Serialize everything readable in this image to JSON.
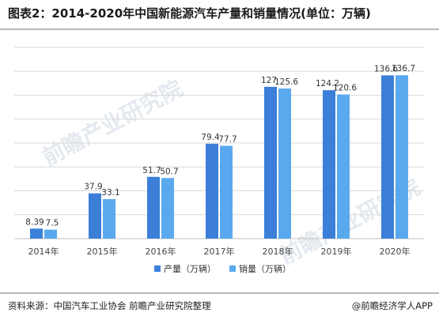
{
  "title": "图表2：2014-2020年中国新能源汽车产量和销量情况(单位：万辆)",
  "watermark": "前瞻产业研究院",
  "source": "资料来源：中国汽车工业协会 前瞻产业研究院整理",
  "brand": "@前瞻经济学人APP",
  "colors": {
    "production": "#3b7fd9",
    "sales": "#5aa9ee",
    "grid": "#d9d9d9",
    "axis": "#bfbfbf"
  },
  "chart_data": {
    "type": "bar",
    "categories": [
      "2014年",
      "2015年",
      "2016年",
      "2017年",
      "2018年",
      "2019年",
      "2020年"
    ],
    "series": [
      {
        "name": "产量（万辆）",
        "values": [
          8.39,
          37.9,
          51.7,
          79.4,
          127,
          124.2,
          136.6
        ],
        "labels": [
          "8.39",
          "37.9",
          "51.7",
          "79.4",
          "127",
          "124.2",
          "136.6"
        ]
      },
      {
        "name": "销量（万辆）",
        "values": [
          7.5,
          33.1,
          50.7,
          77.7,
          125.6,
          120.6,
          136.7
        ],
        "labels": [
          "7.5",
          "33.1",
          "50.7",
          "77.7",
          "125.6",
          "120.6",
          "136.7"
        ]
      }
    ],
    "ylim": [
      0,
      160
    ],
    "grid": true,
    "legend_position": "bottom"
  }
}
